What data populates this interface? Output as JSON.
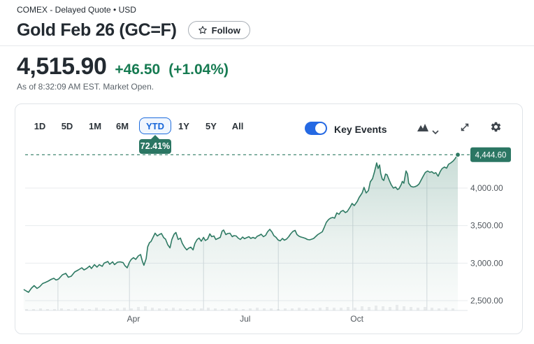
{
  "header": {
    "exchange_line": "COMEX - Delayed Quote • USD",
    "title": "Gold Feb 26 (GC=F)",
    "follow_label": "Follow",
    "price": "4,515.90",
    "change": "+46.50",
    "change_percent": "(+1.04%)",
    "as_of": "As of 8:32:09 AM EST. Market Open."
  },
  "toolbar": {
    "ranges": [
      "1D",
      "5D",
      "1M",
      "6M",
      "YTD",
      "1Y",
      "5Y",
      "All"
    ],
    "selected_range": "YTD",
    "selected_range_return": "72.41%",
    "key_events_label": "Key Events",
    "key_events_on": true
  },
  "colors": {
    "accent_blue": "#1f6dde",
    "positive_green": "#177b52",
    "line_green": "#2e7a63",
    "badge_green": "#2b7663"
  },
  "chart_data": {
    "type": "area",
    "title": "Gold Feb 26 (GC=F) YTD price",
    "x_axis": {
      "labels": [
        "Apr",
        "Jul",
        "Oct"
      ],
      "label_months": [
        3,
        6,
        9
      ],
      "gridline_months": [
        0.97,
        2.89,
        4.88,
        6.89,
        8.89,
        10.88
      ],
      "range_months": [
        0,
        11.71
      ]
    },
    "y_axis": {
      "side": "right",
      "ticks": [
        "4,000.00",
        "3,500.00",
        "3,000.00",
        "2,500.00"
      ],
      "tick_values": [
        4000,
        3500,
        3000,
        2500
      ]
    },
    "current_value": 4444.6,
    "current_value_label": "4,444.60",
    "ytd_return_label": "72.41%",
    "series": [
      [
        0.05,
        2649
      ],
      [
        0.13,
        2626
      ],
      [
        0.18,
        2612
      ],
      [
        0.26,
        2668
      ],
      [
        0.33,
        2700
      ],
      [
        0.41,
        2663
      ],
      [
        0.48,
        2686
      ],
      [
        0.56,
        2728
      ],
      [
        0.63,
        2742
      ],
      [
        0.71,
        2761
      ],
      [
        0.79,
        2784
      ],
      [
        0.86,
        2798
      ],
      [
        0.92,
        2775
      ],
      [
        0.99,
        2789
      ],
      [
        1.09,
        2845
      ],
      [
        1.18,
        2863
      ],
      [
        1.25,
        2812
      ],
      [
        1.33,
        2826
      ],
      [
        1.42,
        2882
      ],
      [
        1.52,
        2910
      ],
      [
        1.61,
        2938
      ],
      [
        1.67,
        2910
      ],
      [
        1.74,
        2929
      ],
      [
        1.82,
        2961
      ],
      [
        1.87,
        2929
      ],
      [
        1.95,
        2980
      ],
      [
        2.02,
        2947
      ],
      [
        2.08,
        2980
      ],
      [
        2.16,
        2957
      ],
      [
        2.21,
        2999
      ],
      [
        2.31,
        3022
      ],
      [
        2.36,
        2984
      ],
      [
        2.44,
        3017
      ],
      [
        2.49,
        2980
      ],
      [
        2.57,
        3012
      ],
      [
        2.64,
        3017
      ],
      [
        2.72,
        3008
      ],
      [
        2.77,
        2966
      ],
      [
        2.83,
        2938
      ],
      [
        2.89,
        3012
      ],
      [
        2.94,
        3050
      ],
      [
        3.0,
        3073
      ],
      [
        3.06,
        3050
      ],
      [
        3.13,
        3096
      ],
      [
        3.19,
        3115
      ],
      [
        3.24,
        3022
      ],
      [
        3.28,
        2971
      ],
      [
        3.34,
        3059
      ],
      [
        3.38,
        3217
      ],
      [
        3.43,
        3273
      ],
      [
        3.47,
        3287
      ],
      [
        3.53,
        3348
      ],
      [
        3.58,
        3399
      ],
      [
        3.64,
        3362
      ],
      [
        3.69,
        3380
      ],
      [
        3.75,
        3394
      ],
      [
        3.81,
        3339
      ],
      [
        3.86,
        3320
      ],
      [
        3.92,
        3245
      ],
      [
        3.98,
        3203
      ],
      [
        4.03,
        3315
      ],
      [
        4.09,
        3385
      ],
      [
        4.14,
        3408
      ],
      [
        4.2,
        3315
      ],
      [
        4.26,
        3334
      ],
      [
        4.31,
        3264
      ],
      [
        4.37,
        3213
      ],
      [
        4.43,
        3176
      ],
      [
        4.48,
        3199
      ],
      [
        4.54,
        3213
      ],
      [
        4.6,
        3176
      ],
      [
        4.65,
        3264
      ],
      [
        4.71,
        3315
      ],
      [
        4.76,
        3334
      ],
      [
        4.82,
        3292
      ],
      [
        4.88,
        3343
      ],
      [
        4.93,
        3301
      ],
      [
        4.99,
        3320
      ],
      [
        5.05,
        3390
      ],
      [
        5.1,
        3352
      ],
      [
        5.16,
        3362
      ],
      [
        5.21,
        3315
      ],
      [
        5.27,
        3329
      ],
      [
        5.33,
        3343
      ],
      [
        5.38,
        3427
      ],
      [
        5.42,
        3441
      ],
      [
        5.48,
        3380
      ],
      [
        5.53,
        3394
      ],
      [
        5.59,
        3399
      ],
      [
        5.65,
        3352
      ],
      [
        5.7,
        3366
      ],
      [
        5.76,
        3362
      ],
      [
        5.81,
        3334
      ],
      [
        5.87,
        3315
      ],
      [
        5.93,
        3348
      ],
      [
        5.98,
        3325
      ],
      [
        6.04,
        3339
      ],
      [
        6.1,
        3352
      ],
      [
        6.15,
        3329
      ],
      [
        6.21,
        3343
      ],
      [
        6.27,
        3329
      ],
      [
        6.32,
        3357
      ],
      [
        6.38,
        3371
      ],
      [
        6.43,
        3385
      ],
      [
        6.49,
        3352
      ],
      [
        6.55,
        3371
      ],
      [
        6.6,
        3418
      ],
      [
        6.66,
        3450
      ],
      [
        6.72,
        3413
      ],
      [
        6.77,
        3366
      ],
      [
        6.83,
        3343
      ],
      [
        6.88,
        3311
      ],
      [
        6.94,
        3297
      ],
      [
        7.0,
        3329
      ],
      [
        7.05,
        3306
      ],
      [
        7.11,
        3320
      ],
      [
        7.17,
        3352
      ],
      [
        7.22,
        3390
      ],
      [
        7.28,
        3422
      ],
      [
        7.34,
        3436
      ],
      [
        7.39,
        3380
      ],
      [
        7.45,
        3357
      ],
      [
        7.5,
        3348
      ],
      [
        7.56,
        3339
      ],
      [
        7.62,
        3329
      ],
      [
        7.67,
        3315
      ],
      [
        7.73,
        3311
      ],
      [
        7.79,
        3320
      ],
      [
        7.84,
        3329
      ],
      [
        7.9,
        3357
      ],
      [
        7.95,
        3380
      ],
      [
        8.01,
        3399
      ],
      [
        8.07,
        3418
      ],
      [
        8.12,
        3474
      ],
      [
        8.18,
        3543
      ],
      [
        8.24,
        3581
      ],
      [
        8.29,
        3599
      ],
      [
        8.35,
        3609
      ],
      [
        8.4,
        3599
      ],
      [
        8.46,
        3669
      ],
      [
        8.52,
        3651
      ],
      [
        8.57,
        3688
      ],
      [
        8.63,
        3702
      ],
      [
        8.69,
        3674
      ],
      [
        8.74,
        3688
      ],
      [
        8.82,
        3748
      ],
      [
        8.87,
        3795
      ],
      [
        8.93,
        3767
      ],
      [
        9.01,
        3823
      ],
      [
        9.06,
        3874
      ],
      [
        9.14,
        3935
      ],
      [
        9.19,
        4009
      ],
      [
        9.25,
        3935
      ],
      [
        9.31,
        3967
      ],
      [
        9.36,
        4084
      ],
      [
        9.42,
        4126
      ],
      [
        9.47,
        4214
      ],
      [
        9.53,
        4335
      ],
      [
        9.57,
        4261
      ],
      [
        9.61,
        4307
      ],
      [
        9.64,
        4196
      ],
      [
        9.68,
        4121
      ],
      [
        9.72,
        4102
      ],
      [
        9.77,
        4186
      ],
      [
        9.81,
        4177
      ],
      [
        9.87,
        4102
      ],
      [
        9.92,
        4047
      ],
      [
        9.98,
        4000
      ],
      [
        10.04,
        4014
      ],
      [
        10.09,
        3981
      ],
      [
        10.13,
        3991
      ],
      [
        10.19,
        4047
      ],
      [
        10.22,
        4089
      ],
      [
        10.26,
        4065
      ],
      [
        10.32,
        4228
      ],
      [
        10.36,
        4186
      ],
      [
        10.39,
        4065
      ],
      [
        10.45,
        4023
      ],
      [
        10.51,
        4014
      ],
      [
        10.56,
        4019
      ],
      [
        10.62,
        4033
      ],
      [
        10.67,
        4056
      ],
      [
        10.73,
        4112
      ],
      [
        10.79,
        4168
      ],
      [
        10.84,
        4210
      ],
      [
        10.9,
        4228
      ],
      [
        10.96,
        4210
      ],
      [
        11.01,
        4219
      ],
      [
        11.07,
        4196
      ],
      [
        11.12,
        4205
      ],
      [
        11.18,
        4158
      ],
      [
        11.24,
        4224
      ],
      [
        11.29,
        4261
      ],
      [
        11.35,
        4280
      ],
      [
        11.41,
        4266
      ],
      [
        11.46,
        4317
      ],
      [
        11.52,
        4335
      ],
      [
        11.58,
        4359
      ],
      [
        11.63,
        4387
      ],
      [
        11.67,
        4419
      ],
      [
        11.71,
        4444.6
      ]
    ],
    "volume_bars": [
      2,
      2,
      3,
      2,
      2,
      3,
      2,
      3,
      3,
      2,
      4,
      3,
      2,
      3,
      4,
      3,
      5,
      6,
      4,
      3,
      3,
      4,
      3,
      2,
      3,
      3,
      4,
      3,
      2,
      3,
      3,
      2,
      3,
      4,
      3,
      3,
      2,
      3,
      3,
      4,
      3,
      3,
      4,
      5,
      4,
      4,
      5,
      4,
      6,
      5,
      7,
      6,
      5,
      8,
      6,
      5,
      4,
      5,
      4,
      3,
      4,
      3
    ]
  }
}
